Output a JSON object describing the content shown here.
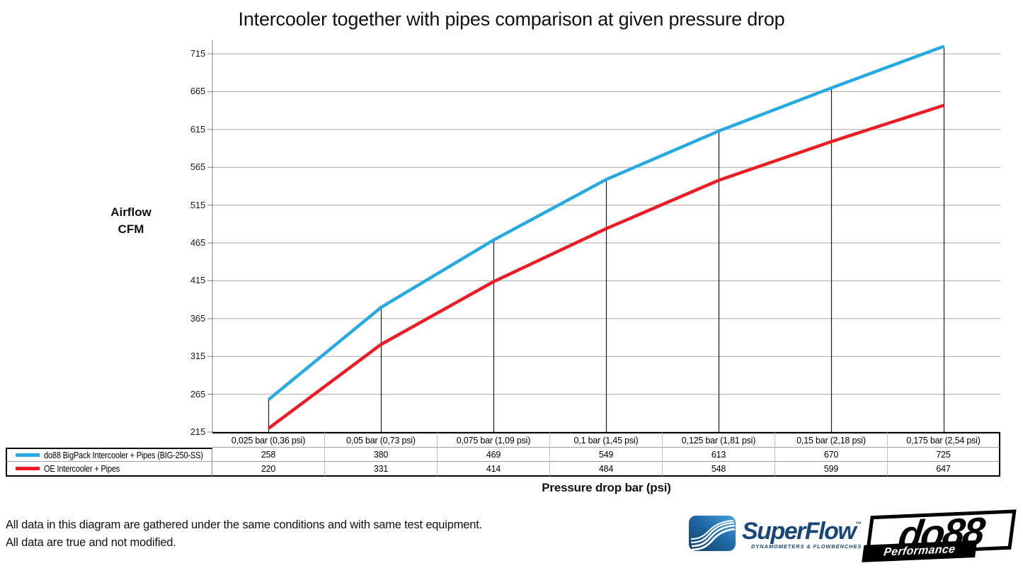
{
  "title": "Intercooler together with pipes comparison at given pressure drop",
  "chart_data": {
    "type": "line",
    "title": "Intercooler together with pipes comparison at given pressure drop",
    "categories": [
      "0,025 bar (0,36 psi)",
      "0,05 bar (0,73 psi)",
      "0,075 bar (1,09 psi)",
      "0,1 bar (1,45 psi)",
      "0,125 bar (1,81 psi)",
      "0,15 bar (2,18 psi)",
      "0,175 bar (2,54 psi)"
    ],
    "series": [
      {
        "name": "do88 BigPack Intercooler + Pipes (BIG-250-SS)",
        "color": "#27AAE1",
        "values": [
          258,
          380,
          469,
          549,
          613,
          670,
          725
        ]
      },
      {
        "name": "OE Intercooler + Pipes",
        "color": "#EC1C24",
        "values": [
          220,
          331,
          414,
          484,
          548,
          599,
          647
        ]
      }
    ],
    "xlabel": "Pressure drop bar (psi)",
    "ylabel": "Airflow CFM",
    "ylabel_lines": [
      "Airflow",
      "CFM"
    ],
    "yticks": [
      215,
      265,
      315,
      365,
      415,
      465,
      515,
      565,
      615,
      665,
      715
    ],
    "ylim": [
      215,
      734
    ],
    "grid": "horizontal",
    "drop_lines": true,
    "legend_position": "data-table-left"
  },
  "colors": {
    "gridline": "#A8A8A8",
    "axis": "#808080",
    "drop_line": "#1a1a1a"
  },
  "footer": {
    "line1": "All data in this diagram are gathered under the same conditions and with same test equipment.",
    "line2": "All data are true and not modified."
  },
  "logos": {
    "superflow": {
      "wordmark": "SuperFlow",
      "tm": "™",
      "tagline": "DYNAMOMETERS & FLOWBENCHES"
    },
    "do88": {
      "wordmark": "do88",
      "sub": "Performance"
    }
  }
}
